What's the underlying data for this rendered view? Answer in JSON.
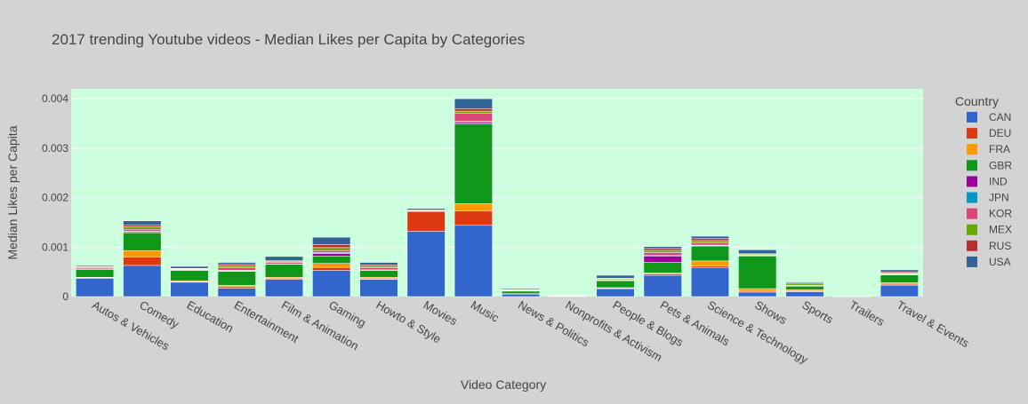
{
  "chart_data": {
    "type": "bar",
    "stacked": true,
    "title": "2017 trending Youtube videos - Median Likes per Capita by Categories",
    "xlabel": "Video Category",
    "ylabel": "Median Likes per Capita",
    "ylim": [
      0,
      0.0042
    ],
    "yticks": [
      0,
      0.001,
      0.002,
      0.003,
      0.004
    ],
    "ytick_labels": [
      "0",
      "0.001",
      "0.002",
      "0.003",
      "0.004"
    ],
    "grid": true,
    "plot_background": "#ccffdd",
    "page_background": "#d3d3d3",
    "legend": {
      "title": "Country",
      "placement": "right"
    },
    "categories": [
      "Autos & Vehicles",
      "Comedy",
      "Education",
      "Entertainment",
      "Film & Animation",
      "Gaming",
      "Howto & Style",
      "Movies",
      "Music",
      "News & Politics",
      "Nonprofits & Activism",
      "People & Blogs",
      "Pets & Animals",
      "Science & Technology",
      "Shows",
      "Sports",
      "Trailers",
      "Travel & Events"
    ],
    "series": [
      {
        "name": "CAN",
        "color": "#3366cc",
        "values": [
          0.00037,
          0.00063,
          0.00029,
          0.00017,
          0.00035,
          0.00053,
          0.00035,
          0.00132,
          0.00144,
          5e-05,
          8e-06,
          0.00016,
          0.00043,
          0.00059,
          9e-05,
          0.0001,
          1.5e-06,
          0.00023
        ]
      },
      {
        "name": "DEU",
        "color": "#dc3912",
        "values": [
          1e-05,
          0.00017,
          1e-05,
          3e-05,
          2e-05,
          6e-05,
          1e-05,
          0.0004,
          0.00029,
          5e-06,
          2e-06,
          1e-05,
          3e-05,
          3e-05,
          2e-05,
          1e-05,
          5e-07,
          2e-05
        ]
      },
      {
        "name": "FRA",
        "color": "#ff9900",
        "values": [
          1e-05,
          0.00013,
          2e-05,
          3e-05,
          2e-05,
          8e-05,
          3e-05,
          0.0,
          0.00015,
          5e-06,
          2e-06,
          1e-05,
          2e-05,
          0.0001,
          5e-05,
          3e-05,
          5e-07,
          3e-05
        ]
      },
      {
        "name": "GBR",
        "color": "#109618",
        "values": [
          0.00016,
          0.00036,
          0.00021,
          0.00028,
          0.00026,
          0.00015,
          0.00014,
          0.0,
          0.00161,
          5e-05,
          3e-06,
          0.00014,
          0.00021,
          0.00029,
          0.00066,
          7e-05,
          5e-07,
          0.00016
        ]
      },
      {
        "name": "IND",
        "color": "#990099",
        "values": [
          5e-06,
          2e-05,
          5e-06,
          1e-05,
          5e-06,
          5e-05,
          5e-06,
          1e-05,
          3e-05,
          5e-06,
          1e-06,
          5e-06,
          0.00013,
          2e-05,
          5e-06,
          5e-06,
          5e-07,
          5e-06
        ]
      },
      {
        "name": "JPN",
        "color": "#0099c6",
        "values": [
          5e-06,
          1e-05,
          5e-06,
          1e-05,
          5e-06,
          2e-05,
          5e-06,
          0.0,
          2e-05,
          5e-06,
          1e-06,
          5e-06,
          1e-05,
          1e-05,
          5e-06,
          5e-06,
          5e-07,
          5e-06
        ]
      },
      {
        "name": "KOR",
        "color": "#dd4477",
        "values": [
          2e-05,
          4e-05,
          1e-05,
          5e-05,
          3e-05,
          4e-05,
          4e-05,
          0.0,
          0.00017,
          5e-06,
          1e-06,
          1e-05,
          6e-05,
          5e-05,
          5e-06,
          5e-06,
          5e-07,
          1e-05
        ]
      },
      {
        "name": "MEX",
        "color": "#66aa00",
        "values": [
          2e-05,
          5e-05,
          1e-05,
          4e-05,
          2e-05,
          6e-05,
          3e-05,
          1e-05,
          4e-05,
          1e-05,
          2e-06,
          2e-05,
          4e-05,
          4e-05,
          2e-05,
          3e-05,
          5e-07,
          2e-05
        ]
      },
      {
        "name": "RUS",
        "color": "#b82e2e",
        "values": [
          1e-05,
          4e-05,
          1e-05,
          3e-05,
          2e-05,
          6e-05,
          3e-05,
          1e-05,
          5e-05,
          5e-06,
          1e-06,
          1e-05,
          4e-05,
          4e-05,
          1e-05,
          2e-05,
          5e-07,
          2e-05
        ]
      },
      {
        "name": "USA",
        "color": "#316395",
        "values": [
          2e-05,
          8e-05,
          4e-05,
          4e-05,
          8e-05,
          0.00015,
          5e-05,
          3e-05,
          0.0002,
          2e-05,
          2e-06,
          6e-05,
          4e-05,
          5e-05,
          8e-05,
          2e-05,
          5e-07,
          4e-05
        ]
      }
    ]
  }
}
